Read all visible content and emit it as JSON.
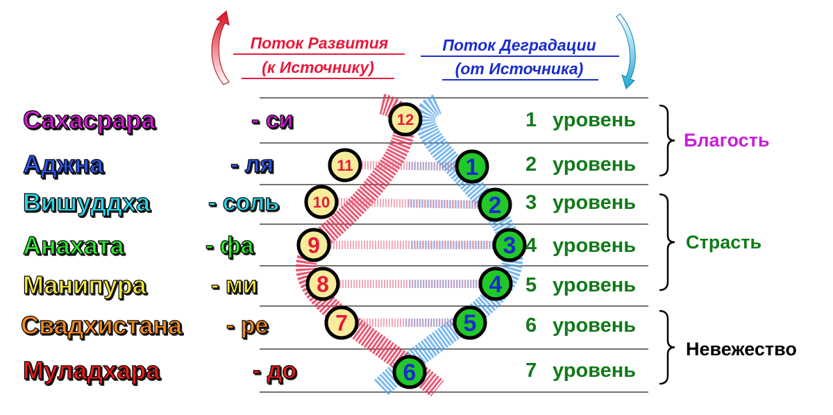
{
  "flows": {
    "development": {
      "line1": "Поток Развития",
      "line2": "(к Источнику)",
      "color": "#e8183a",
      "arrow_color": "#d81020"
    },
    "degradation": {
      "line1": "Поток Деградации",
      "line2": "(от Источника)",
      "color": "#1a2ccc",
      "arrow_color": "#20a8d8"
    }
  },
  "rows": [
    {
      "chakra": "Сахасрара",
      "note": "- си",
      "color": "#d41ed4",
      "left_num": "12",
      "right_num": "",
      "level_num": "1",
      "level_word": "уровень"
    },
    {
      "chakra": "Аджна",
      "note": "- ля",
      "color": "#2d55e8",
      "left_num": "11",
      "right_num": "1",
      "level_num": "2",
      "level_word": "уровень"
    },
    {
      "chakra": "Вишуддха",
      "note": "- соль",
      "color": "#2cd8ea",
      "left_num": "10",
      "right_num": "2",
      "level_num": "3",
      "level_word": "уровень"
    },
    {
      "chakra": "Анахата",
      "note": "- фа",
      "color": "#2ee82e",
      "left_num": "9",
      "right_num": "3",
      "level_num": "4",
      "level_word": "уровень"
    },
    {
      "chakra": "Манипура",
      "note": "- ми",
      "color": "#f4e840",
      "left_num": "8",
      "right_num": "4",
      "level_num": "5",
      "level_word": "уровень"
    },
    {
      "chakra": "Свадхистана",
      "note": "- ре",
      "color": "#f48a1c",
      "left_num": "7",
      "right_num": "5",
      "level_num": "6",
      "level_word": "уровень"
    },
    {
      "chakra": "Муладхара",
      "note": "- до",
      "color": "#e81c1c",
      "left_num": "",
      "right_num": "6",
      "level_num": "7",
      "level_word": "уровень"
    }
  ],
  "groups": [
    {
      "label": "Благость",
      "color": "#c81ed8",
      "levels": [
        1,
        2
      ]
    },
    {
      "label": "Страсть",
      "color": "#117a1a",
      "levels": [
        3,
        5
      ]
    },
    {
      "label": "Невежество",
      "color": "#000000",
      "levels": [
        6,
        7
      ]
    }
  ],
  "colors": {
    "level_text": "#117a1a",
    "left_circle_fill": "#f6ec9a",
    "left_circle_text": "#e8183a",
    "right_circle_fill": "#22c828",
    "right_circle_text": "#1a2ccc",
    "strand_red": "#e23050",
    "strand_blue": "#4ea0e8"
  }
}
